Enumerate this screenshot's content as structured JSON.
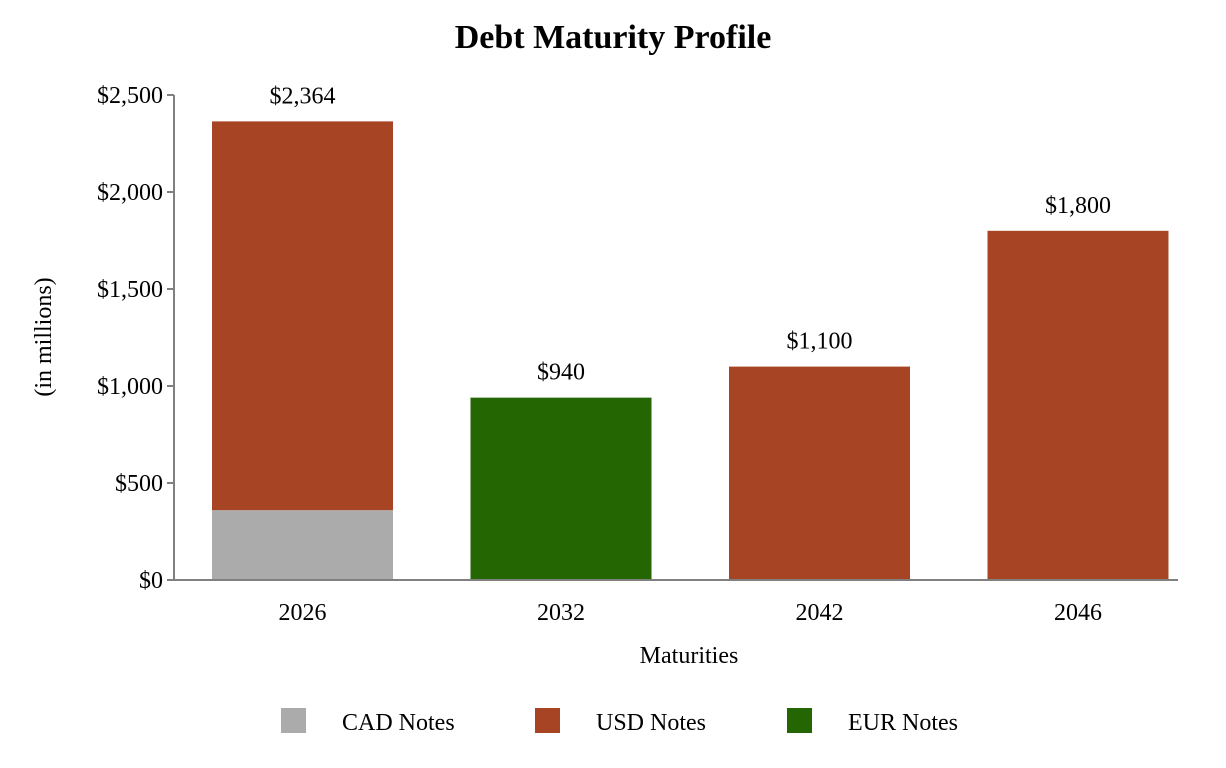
{
  "chart_data": {
    "type": "bar",
    "stacked": true,
    "title": "Debt Maturity Profile",
    "xlabel": "Maturities",
    "ylabel": "(in millions)",
    "categories": [
      "2026",
      "2032",
      "2042",
      "2046"
    ],
    "ylim": [
      0,
      2500
    ],
    "yticks": [
      0,
      500,
      1000,
      1500,
      2000,
      2500
    ],
    "ytick_labels": [
      "$0",
      "$500",
      "$1,000",
      "$1,500",
      "$2,000",
      "$2,500"
    ],
    "series": [
      {
        "name": "CAD Notes",
        "color": "#ababab",
        "values": [
          360,
          0,
          0,
          0
        ]
      },
      {
        "name": "USD Notes",
        "color": "#a64424",
        "values": [
          2004,
          0,
          1100,
          1800
        ]
      },
      {
        "name": "EUR Notes",
        "color": "#236602",
        "values": [
          0,
          940,
          0,
          0
        ]
      }
    ],
    "totals": [
      2364,
      940,
      1100,
      1800
    ],
    "data_labels": [
      "$2,364",
      "$940",
      "$1,100",
      "$1,800"
    ],
    "legend": [
      "CAD Notes",
      "USD Notes",
      "EUR Notes"
    ],
    "legend_position": "bottom",
    "grid": false
  }
}
